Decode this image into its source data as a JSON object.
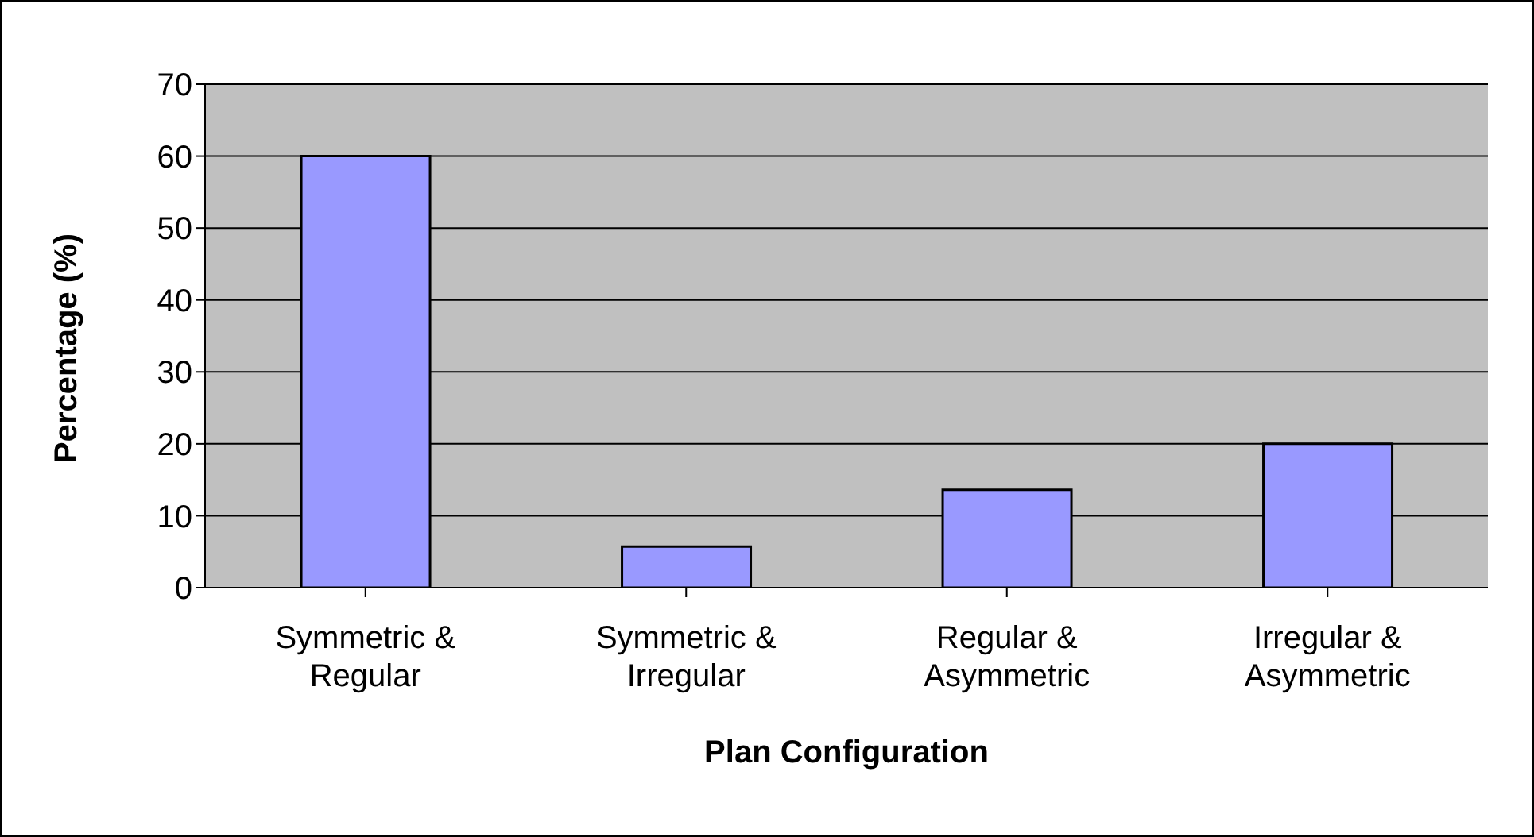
{
  "chart_data": {
    "type": "bar",
    "xlabel": "Plan Configuration",
    "ylabel": "Percentage (%)",
    "categories": [
      "Symmetric & Regular",
      "Symmetric & Irregular",
      "Regular & Asymmetric",
      "Irregular & Asymmetric"
    ],
    "values": [
      60,
      5.7,
      13.6,
      20
    ],
    "color": "#9999ff",
    "ylim": [
      0,
      70
    ],
    "yticks": [
      0,
      10,
      20,
      30,
      40,
      50,
      60,
      70
    ],
    "grid": "y",
    "legend": false
  }
}
